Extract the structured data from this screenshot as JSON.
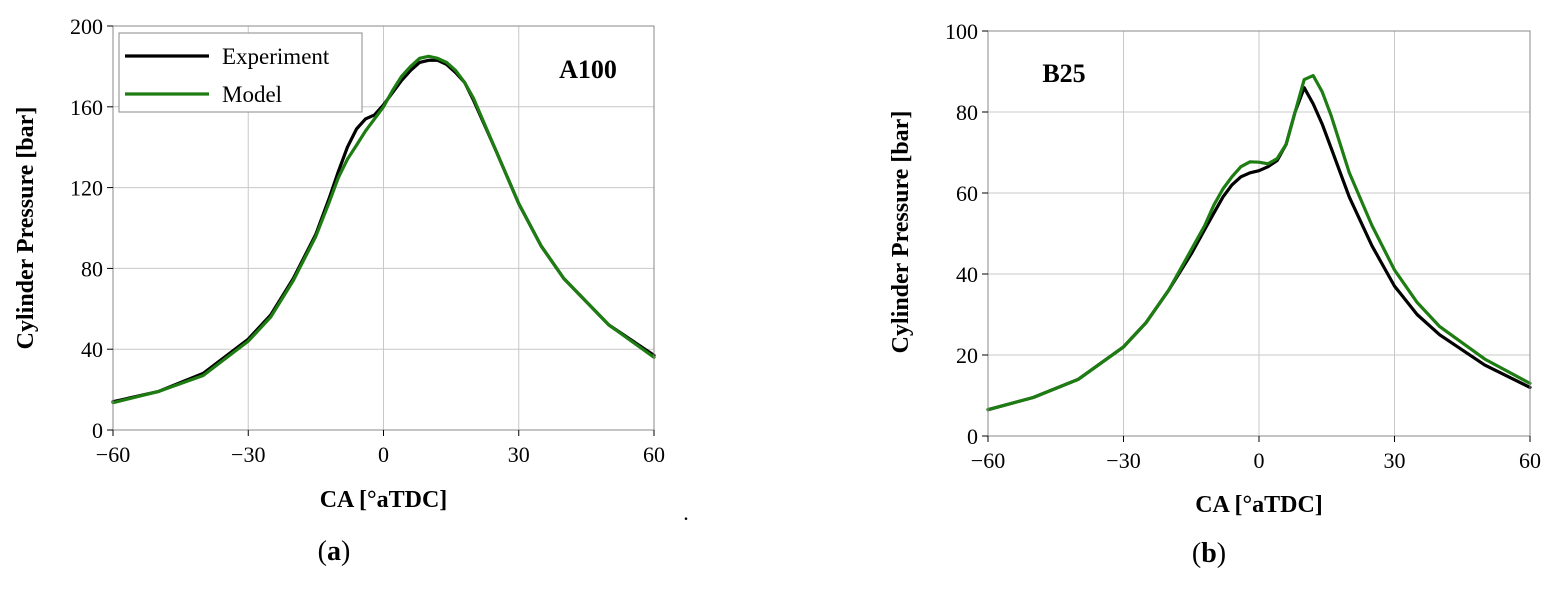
{
  "figure": {
    "stray_mark": "."
  },
  "chart_data": [
    {
      "type": "line",
      "panel_label": "a",
      "annotation": "A100",
      "xlabel": "CA [°aTDC]",
      "ylabel": "Cylinder Pressure [bar]",
      "xlim": [
        -60,
        60
      ],
      "ylim": [
        0,
        200
      ],
      "xticks": [
        -60,
        -30,
        0,
        30,
        60
      ],
      "xtick_labels": [
        "−60",
        "−30",
        "0",
        "30",
        "60"
      ],
      "yticks": [
        0,
        40,
        80,
        120,
        160,
        200
      ],
      "ytick_labels": [
        "0",
        "40",
        "80",
        "120",
        "160",
        "200"
      ],
      "grid": true,
      "legend_position": "top-left",
      "series": [
        {
          "name": "Experiment",
          "color": "#000000",
          "x": [
            -60,
            -50,
            -40,
            -30,
            -25,
            -20,
            -15,
            -12,
            -10,
            -8,
            -6,
            -4,
            -2,
            0,
            2,
            4,
            6,
            8,
            10,
            12,
            14,
            16,
            18,
            20,
            25,
            30,
            35,
            40,
            50,
            60
          ],
          "y": [
            14,
            19,
            28,
            45,
            57,
            75,
            97,
            115,
            128,
            140,
            149,
            154,
            156,
            161,
            167,
            173,
            178,
            182,
            183,
            183,
            181,
            177,
            172,
            163,
            138,
            112,
            91,
            75,
            52,
            37
          ]
        },
        {
          "name": "Model",
          "color": "#1e7d12",
          "x": [
            -60,
            -50,
            -40,
            -30,
            -25,
            -20,
            -15,
            -12,
            -10,
            -8,
            -6,
            -4,
            -2,
            0,
            2,
            4,
            6,
            8,
            10,
            12,
            14,
            16,
            18,
            20,
            25,
            30,
            35,
            40,
            50,
            60
          ],
          "y": [
            13.5,
            19,
            27,
            44,
            56,
            74,
            96,
            113,
            125,
            134,
            141,
            148,
            154,
            160,
            168,
            175,
            180,
            184,
            185,
            184,
            182,
            178,
            172,
            164,
            138,
            112,
            91,
            75,
            52,
            36
          ]
        }
      ]
    },
    {
      "type": "line",
      "panel_label": "b",
      "annotation": "B25",
      "xlabel": "CA [°aTDC]",
      "ylabel": "Cylinder Pressure [bar]",
      "xlim": [
        -60,
        60
      ],
      "ylim": [
        0,
        100
      ],
      "xticks": [
        -60,
        -30,
        0,
        30,
        60
      ],
      "xtick_labels": [
        "−60",
        "−30",
        "0",
        "30",
        "60"
      ],
      "yticks": [
        0,
        20,
        40,
        60,
        80,
        100
      ],
      "ytick_labels": [
        "0",
        "20",
        "40",
        "60",
        "80",
        "100"
      ],
      "grid": true,
      "series": [
        {
          "name": "Experiment",
          "color": "#000000",
          "x": [
            -60,
            -50,
            -40,
            -30,
            -25,
            -20,
            -15,
            -12,
            -10,
            -8,
            -6,
            -4,
            -2,
            0,
            2,
            4,
            6,
            8,
            10,
            12,
            14,
            16,
            18,
            20,
            25,
            30,
            35,
            40,
            50,
            60
          ],
          "y": [
            6.5,
            9.5,
            14,
            22,
            28,
            36,
            45,
            51,
            55,
            59,
            62,
            64,
            65,
            65.5,
            66.5,
            68,
            72,
            80,
            86,
            82,
            77,
            71,
            65,
            59,
            47,
            37,
            30,
            25,
            17.5,
            12
          ]
        },
        {
          "name": "Model",
          "color": "#1e7d12",
          "x": [
            -60,
            -50,
            -40,
            -30,
            -25,
            -20,
            -15,
            -12,
            -10,
            -8,
            -6,
            -4,
            -2,
            0,
            2,
            4,
            6,
            8,
            10,
            12,
            14,
            16,
            18,
            20,
            25,
            30,
            35,
            40,
            50,
            60
          ],
          "y": [
            6.5,
            9.5,
            14,
            22,
            28,
            36,
            46,
            52,
            57,
            61,
            64,
            66.5,
            67.7,
            67.6,
            67.2,
            68.5,
            72,
            80,
            88,
            89,
            85,
            79,
            72,
            65,
            52,
            41,
            33,
            27,
            19,
            13
          ]
        }
      ]
    }
  ]
}
